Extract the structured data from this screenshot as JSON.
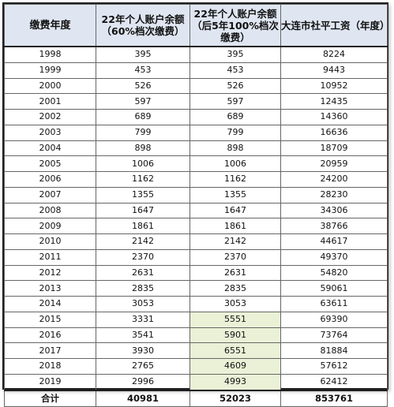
{
  "table": {
    "headers": [
      "缴费年度",
      "22年个人账户余额（60%档次缴费）",
      "22年个人账户余额（后5年100%档次缴费）",
      "大连市社平工资（年度）"
    ],
    "rows": [
      {
        "year": "1998",
        "bal60": "395",
        "bal100": "395",
        "avg_wage": "8224",
        "highlight": false
      },
      {
        "year": "1999",
        "bal60": "453",
        "bal100": "453",
        "avg_wage": "9443",
        "highlight": false
      },
      {
        "year": "2000",
        "bal60": "526",
        "bal100": "526",
        "avg_wage": "10952",
        "highlight": false
      },
      {
        "year": "2001",
        "bal60": "597",
        "bal100": "597",
        "avg_wage": "12435",
        "highlight": false
      },
      {
        "year": "2002",
        "bal60": "689",
        "bal100": "689",
        "avg_wage": "14360",
        "highlight": false
      },
      {
        "year": "2003",
        "bal60": "799",
        "bal100": "799",
        "avg_wage": "16636",
        "highlight": false
      },
      {
        "year": "2004",
        "bal60": "898",
        "bal100": "898",
        "avg_wage": "18709",
        "highlight": false
      },
      {
        "year": "2005",
        "bal60": "1006",
        "bal100": "1006",
        "avg_wage": "20959",
        "highlight": false
      },
      {
        "year": "2006",
        "bal60": "1162",
        "bal100": "1162",
        "avg_wage": "24200",
        "highlight": false
      },
      {
        "year": "2007",
        "bal60": "1355",
        "bal100": "1355",
        "avg_wage": "28230",
        "highlight": false
      },
      {
        "year": "2008",
        "bal60": "1647",
        "bal100": "1647",
        "avg_wage": "34306",
        "highlight": false
      },
      {
        "year": "2009",
        "bal60": "1861",
        "bal100": "1861",
        "avg_wage": "38766",
        "highlight": false
      },
      {
        "year": "2010",
        "bal60": "2142",
        "bal100": "2142",
        "avg_wage": "44617",
        "highlight": false
      },
      {
        "year": "2011",
        "bal60": "2370",
        "bal100": "2370",
        "avg_wage": "49370",
        "highlight": false
      },
      {
        "year": "2012",
        "bal60": "2631",
        "bal100": "2631",
        "avg_wage": "54820",
        "highlight": false
      },
      {
        "year": "2013",
        "bal60": "2835",
        "bal100": "2835",
        "avg_wage": "59061",
        "highlight": false
      },
      {
        "year": "2014",
        "bal60": "3053",
        "bal100": "3053",
        "avg_wage": "63611",
        "highlight": false
      },
      {
        "year": "2015",
        "bal60": "3331",
        "bal100": "5551",
        "avg_wage": "69390",
        "highlight": true
      },
      {
        "year": "2016",
        "bal60": "3541",
        "bal100": "5901",
        "avg_wage": "73764",
        "highlight": true
      },
      {
        "year": "2017",
        "bal60": "3930",
        "bal100": "6551",
        "avg_wage": "81884",
        "highlight": true
      },
      {
        "year": "2018",
        "bal60": "2765",
        "bal100": "4609",
        "avg_wage": "57612",
        "highlight": true
      },
      {
        "year": "2019",
        "bal60": "2996",
        "bal100": "4993",
        "avg_wage": "62412",
        "highlight": true
      }
    ],
    "total": {
      "label": "合计",
      "bal60": "40981",
      "bal100": "52023",
      "avg_wage": "853761"
    }
  },
  "colors": {
    "header_bg": "#dfe6f1",
    "highlight_bg": "#ebf1d7",
    "border": "#666666"
  }
}
